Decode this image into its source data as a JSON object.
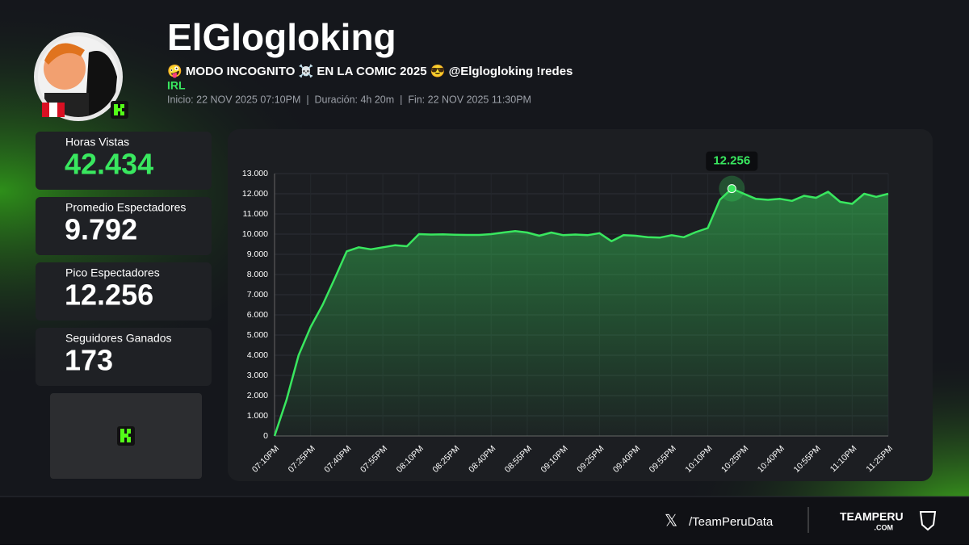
{
  "header": {
    "name": "ElGlogloking",
    "stream_title": "🤪 MODO INCOGNITO ☠️ EN LA COMIC 2025 😎 @Elglogloking !redes",
    "category": "IRL",
    "meta": "Inicio: 22 NOV 2025 07:10PM  |  Duración: 4h 20m  |  Fin: 22 NOV 2025 11:30PM"
  },
  "stats": [
    {
      "label": "Horas Vistas",
      "value": "42.434"
    },
    {
      "label": "Promedio Espectadores",
      "value": "9.792"
    },
    {
      "label": "Pico Espectadores",
      "value": "12.256"
    },
    {
      "label": "Seguidores Ganados",
      "value": "173"
    }
  ],
  "chart_data": {
    "type": "area",
    "color": "#39e75f",
    "grid": true,
    "categories": [
      "07:10PM",
      null,
      null,
      "07:25PM",
      null,
      null,
      "07:40PM",
      null,
      null,
      "07:55PM",
      null,
      null,
      "08:10PM",
      null,
      null,
      "08:25PM",
      null,
      null,
      "08:40PM",
      null,
      null,
      "08:55PM",
      null,
      null,
      "09:10PM",
      null,
      null,
      "09:25PM",
      null,
      null,
      "09:40PM",
      null,
      null,
      "09:55PM",
      null,
      null,
      "10:10PM",
      null,
      null,
      "10:25PM",
      null,
      null,
      "10:40PM",
      null,
      null,
      "10:55PM",
      null,
      null,
      "11:10PM",
      null,
      null,
      "11:25PM"
    ],
    "values": [
      0,
      1800,
      4000,
      5400,
      6500,
      7800,
      9150,
      9350,
      9250,
      9350,
      9450,
      9400,
      10000,
      9980,
      9990,
      9970,
      9960,
      9960,
      10000,
      10080,
      10150,
      10080,
      9920,
      10080,
      9950,
      9980,
      9950,
      10050,
      9650,
      9950,
      9920,
      9850,
      9830,
      9950,
      9850,
      10100,
      10300,
      11700,
      12256,
      12000,
      11750,
      11700,
      11750,
      11650,
      11900,
      11800,
      12100,
      11600,
      11500,
      12000,
      11850,
      12000
    ],
    "value_labels": [
      null,
      null,
      null,
      null,
      null,
      null,
      null,
      null,
      null,
      null,
      null,
      null,
      null,
      null,
      null,
      null,
      null,
      null,
      null,
      null,
      null,
      null,
      null,
      null,
      null,
      null,
      null,
      null,
      null,
      null,
      null,
      null,
      null,
      null,
      null,
      null,
      null,
      null,
      "12.256",
      null,
      null,
      null,
      null,
      null,
      null,
      null,
      null,
      null,
      null,
      null,
      null,
      null
    ],
    "ylim": [
      0,
      13000
    ],
    "yticks": [
      0,
      {
        "value": 1000,
        "label": "1.000"
      },
      {
        "value": 2000,
        "label": "2.000"
      },
      {
        "value": 3000,
        "label": "3.000"
      },
      {
        "value": 4000,
        "label": "4.000"
      },
      {
        "value": 5000,
        "label": "5.000"
      },
      {
        "value": 6000,
        "label": "6.000"
      },
      {
        "value": 7000,
        "label": "7.000"
      },
      {
        "value": 8000,
        "label": "8.000"
      },
      {
        "value": 9000,
        "label": "9.000"
      },
      {
        "value": 10000,
        "label": "10.000"
      },
      {
        "value": 11000,
        "label": "11.000"
      },
      {
        "value": 12000,
        "label": "12.000"
      },
      {
        "value": 13000,
        "label": "13.000"
      }
    ]
  },
  "footer": {
    "social": "/TeamPeruData",
    "brand": "TEAMPERU",
    "brand_sub": ".COM"
  }
}
